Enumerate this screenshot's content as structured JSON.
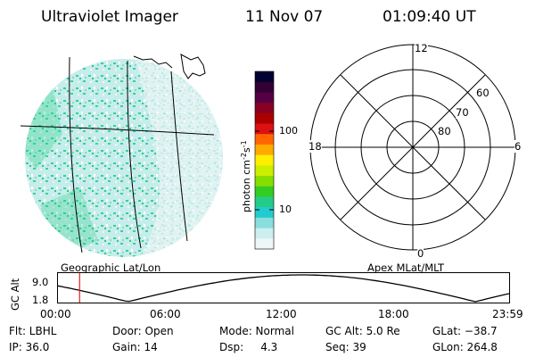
{
  "header": {
    "instrument": "Ultraviolet Imager",
    "date": "11 Nov 07",
    "time": "01:09:40 UT"
  },
  "geo_label": "Geographic Lat/Lon",
  "apex_label": "Apex MLat/MLT",
  "colorbar": {
    "unit_prefix": "photon cm",
    "unit_exp1": "-2",
    "unit_mid": "s",
    "unit_exp2": "-1",
    "ticks": [
      {
        "label": "100",
        "value": 100
      },
      {
        "label": "10",
        "value": 10
      }
    ],
    "colors": [
      "#000033",
      "#330033",
      "#550044",
      "#880022",
      "#aa0000",
      "#dd1111",
      "#ff6600",
      "#ffaa00",
      "#ffee00",
      "#ccee00",
      "#88dd00",
      "#33cc22",
      "#22cc88",
      "#22cccc",
      "#88dddd",
      "#cceeee",
      "#eef7f7"
    ]
  },
  "polar": {
    "mlt_labels": {
      "top": "12",
      "left": "18",
      "right": "6",
      "bottom": "0"
    },
    "lat_labels": [
      "60",
      "70",
      "80"
    ]
  },
  "timeline": {
    "ylabel": "GC Alt",
    "ytick_top": "9.0",
    "ytick_bottom": "1.8",
    "xticks": [
      "00:00",
      "06:00",
      "12:00",
      "18:00",
      "23:59"
    ],
    "current_time_fraction": 0.048
  },
  "info": {
    "flt": "Flt: LBHL",
    "door": "Door: Open",
    "mode": "Mode: Normal",
    "gcalt": "GC Alt: 5.0 Re",
    "glat": "GLat: −38.7",
    "ip": "IP: 36.0",
    "gain": "Gain: 14",
    "dsp": "Dsp:     4.3",
    "seq": "Seq: 39",
    "glon": "GLon: 264.8"
  }
}
